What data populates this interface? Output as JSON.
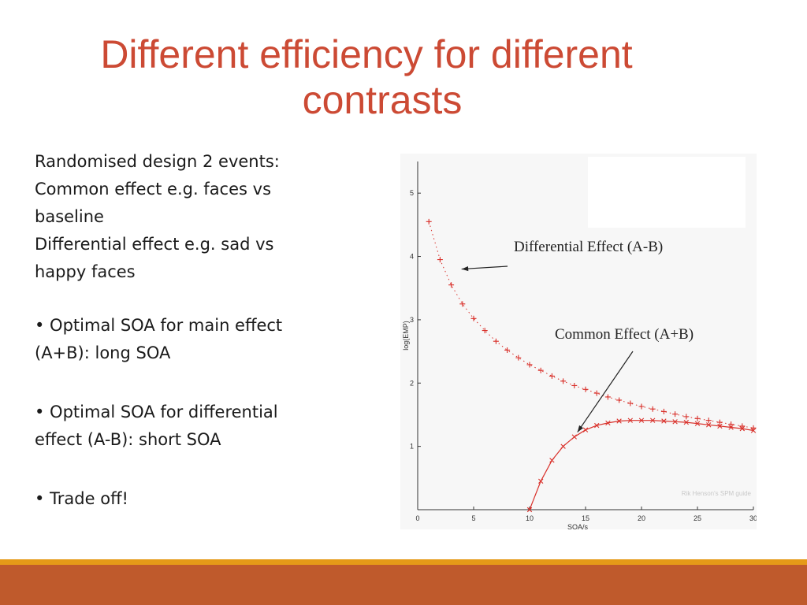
{
  "slide": {
    "title_line1": "Different efficiency for different",
    "title_line2": "contrasts",
    "bullets": [
      "Randomised design 2 events:",
      "Common effect e.g. faces vs baseline",
      "Differential effect e.g. sad vs happy faces",
      "• Optimal SOA for main effect (A+B): long SOA",
      "• Optimal SOA for differential effect (A-B): short SOA",
      "• Trade off!"
    ]
  },
  "colors": {
    "title": "#cc4a34",
    "curve": "#d9302a",
    "footer_thin": "#e59a18",
    "footer_thick": "#bf5a2c"
  },
  "chart_data": {
    "type": "line",
    "xlabel": "SOA/s",
    "ylabel": "log(EMP)",
    "xlim": [
      0,
      30
    ],
    "ylim": [
      0,
      5.5
    ],
    "xticks": [
      "0",
      "5",
      "10",
      "15",
      "20",
      "25",
      "30"
    ],
    "yticks": [
      "1",
      "2",
      "3",
      "4",
      "5"
    ],
    "series": [
      {
        "name": "Differential Effect (A-B)",
        "marker": "+",
        "x": [
          1,
          2,
          3,
          4,
          5,
          6,
          7,
          8,
          9,
          10,
          11,
          12,
          13,
          14,
          15,
          16,
          17,
          18,
          19,
          20,
          21,
          22,
          23,
          24,
          25,
          26,
          27,
          28,
          29,
          30
        ],
        "y": [
          4.55,
          3.95,
          3.55,
          3.25,
          3.02,
          2.83,
          2.66,
          2.52,
          2.4,
          2.29,
          2.2,
          2.11,
          2.03,
          1.96,
          1.9,
          1.84,
          1.78,
          1.73,
          1.68,
          1.63,
          1.59,
          1.55,
          1.51,
          1.47,
          1.44,
          1.41,
          1.38,
          1.35,
          1.32,
          1.29
        ]
      },
      {
        "name": "Common Effect (A+B)",
        "marker": "x",
        "x": [
          10,
          11,
          12,
          13,
          14,
          15,
          16,
          17,
          18,
          19,
          20,
          21,
          22,
          23,
          24,
          25,
          26,
          27,
          28,
          29,
          30
        ],
        "y": [
          0.0,
          0.45,
          0.78,
          1.0,
          1.15,
          1.26,
          1.33,
          1.37,
          1.4,
          1.41,
          1.41,
          1.41,
          1.4,
          1.39,
          1.38,
          1.36,
          1.34,
          1.32,
          1.3,
          1.28,
          1.25
        ]
      }
    ],
    "annotations": [
      {
        "text": "Differential Effect (A-B)",
        "target_x": 3.5,
        "target_y": 3.9
      },
      {
        "text": "Common Effect (A+B)",
        "target_x": 14,
        "target_y": 1.15
      }
    ],
    "watermark_line1": "Rik Henson's SPM guide"
  }
}
